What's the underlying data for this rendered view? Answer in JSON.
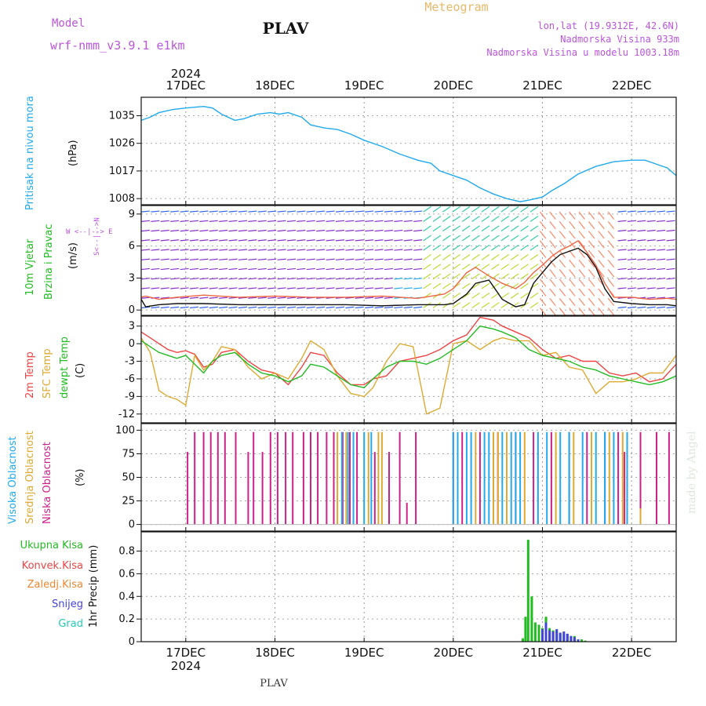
{
  "header": {
    "model_label": "Model",
    "model_name": "wrf-nmm_v3.9.1  e1km",
    "station": "PLAV",
    "product": "Meteogram",
    "coords": "lon,lat (19.9312E, 42.6N)",
    "elevation": "Nadmorska Visina 933m",
    "model_elevation": "Nadmorska Visina u modelu 1003.18m"
  },
  "footer": {
    "station": "PLAV",
    "watermark": "made by Angel"
  },
  "panels": {
    "pressure": {
      "label": "Pritisak na nivou mora",
      "label2": "",
      "unit": "(hPa)"
    },
    "wind": {
      "label1": "10m Vjetar",
      "label2": "Brzina i Pravac",
      "unit": "(m/s)",
      "compass": "S<--|-->N",
      "compass2": "W <--|--> E"
    },
    "temperature": {
      "label_2m": "2m Temp",
      "label_sfc": "SFC Temp",
      "label_dewpt": "dewpt Temp",
      "unit": "(C)"
    },
    "clouds": {
      "label_high": "Visoka Oblacnost",
      "label_mid": "Srednja Oblacnost",
      "label_low": "Niska Oblacnost",
      "unit": "(%)"
    },
    "precip": {
      "label_total": "Ukupna Kisa",
      "label_convective": "Konvek.Kisa",
      "label_freezing": "Zaledj.Kisa",
      "label_snow": "Snijeg",
      "label_hail": "Grad",
      "unit": "1hr Precip (mm)"
    }
  },
  "x_axis": {
    "year": "2024",
    "dates": [
      "17DEC",
      "18DEC",
      "19DEC",
      "20DEC",
      "21DEC",
      "22DEC"
    ]
  },
  "colors": {
    "pressure": "#22aaee",
    "temp_2m": "#ee4444",
    "temp_sfc": "#ddaa33",
    "dewpoint": "#22bb22",
    "cloud_high": "#22aaee",
    "cloud_mid": "#ddaa33",
    "cloud_low": "#cc2288",
    "precip_total": "#22bb22",
    "precip_snow": "#4444dd",
    "wind_speed": "#111111",
    "wind_gust": "#ee6644"
  },
  "chart_data": [
    {
      "type": "line",
      "panel": "pressure",
      "ylabel": "(hPa)",
      "yticks": [
        1008,
        1017,
        1026,
        1035
      ],
      "ylim": [
        1006,
        1041
      ],
      "xlim": [
        -0.5,
        5.5
      ],
      "x": [
        -0.5,
        -0.4,
        -0.3,
        -0.15,
        0,
        0.2,
        0.3,
        0.4,
        0.55,
        0.65,
        0.8,
        0.95,
        1.05,
        1.15,
        1.3,
        1.4,
        1.55,
        1.7,
        1.85,
        2.0,
        2.2,
        2.4,
        2.6,
        2.75,
        2.85,
        3.0,
        3.15,
        3.3,
        3.45,
        3.6,
        3.75,
        3.85,
        4.0,
        4.1,
        4.25,
        4.4,
        4.6,
        4.8,
        5.0,
        5.15,
        5.3,
        5.4,
        5.5
      ],
      "series": [
        {
          "values": [
            1033.5,
            1034.5,
            1036,
            1037,
            1037.5,
            1038,
            1037.5,
            1035.5,
            1033.5,
            1034,
            1035.5,
            1036,
            1035.5,
            1036,
            1034.5,
            1032,
            1031,
            1030.5,
            1029,
            1027,
            1025,
            1022.5,
            1020.5,
            1019.5,
            1017,
            1015.5,
            1014,
            1011.5,
            1009.5,
            1008,
            1007,
            1007.5,
            1008.5,
            1010.5,
            1013,
            1016,
            1018.5,
            1020,
            1020.5,
            1020.5,
            1019,
            1018,
            1015.5
          ]
        }
      ]
    },
    {
      "type": "line",
      "panel": "wind",
      "ylabel": "(m/s)",
      "yticks": [
        0,
        3,
        6,
        9
      ],
      "ylim": [
        -0.5,
        9.8
      ],
      "xlim": [
        -0.5,
        5.5
      ],
      "x": [
        -0.5,
        -0.45,
        -0.3,
        -0.1,
        0.2,
        0.6,
        1.0,
        1.4,
        1.8,
        2.2,
        2.6,
        2.9,
        3.0,
        3.15,
        3.25,
        3.4,
        3.55,
        3.7,
        3.8,
        3.9,
        4.0,
        4.1,
        4.2,
        4.3,
        4.4,
        4.5,
        4.6,
        4.7,
        4.8,
        5.0,
        5.2,
        5.4,
        5.5
      ],
      "series": [
        {
          "name": "speed",
          "values": [
            1.0,
            0.3,
            0.5,
            0.6,
            0.6,
            0.5,
            0.5,
            0.5,
            0.5,
            0.4,
            0.5,
            0.5,
            0.6,
            1.5,
            2.5,
            2.8,
            1.0,
            0.3,
            0.5,
            2.5,
            3.5,
            4.5,
            5.2,
            5.5,
            5.8,
            5.2,
            4.0,
            2.0,
            0.8,
            0.6,
            0.5,
            0.5,
            0.4
          ]
        },
        {
          "name": "gust",
          "values": [
            1.2,
            1.3,
            1.0,
            1.2,
            1.4,
            1.2,
            1.3,
            1.2,
            1.2,
            1.3,
            1.1,
            1.5,
            2.0,
            3.5,
            4.0,
            3.2,
            2.5,
            2.0,
            2.6,
            3.5,
            4.2,
            5.0,
            5.6,
            6.0,
            6.5,
            5.4,
            4.2,
            2.5,
            1.2,
            1.2,
            1.0,
            1.1,
            1.0
          ]
        }
      ]
    },
    {
      "type": "line",
      "panel": "temperature",
      "ylabel": "(C)",
      "yticks": [
        -12,
        -9,
        -6,
        -3,
        0,
        3
      ],
      "ylim": [
        -13.5,
        4.7
      ],
      "xlim": [
        -0.5,
        5.5
      ],
      "x": [
        -0.5,
        -0.4,
        -0.3,
        -0.2,
        -0.1,
        0,
        0.1,
        0.2,
        0.3,
        0.4,
        0.55,
        0.7,
        0.85,
        1.0,
        1.15,
        1.3,
        1.4,
        1.55,
        1.7,
        1.85,
        2.0,
        2.1,
        2.25,
        2.4,
        2.55,
        2.7,
        2.85,
        3.0,
        3.15,
        3.3,
        3.45,
        3.55,
        3.7,
        3.85,
        4.0,
        4.15,
        4.3,
        4.45,
        4.6,
        4.75,
        4.9,
        5.05,
        5.2,
        5.35,
        5.5
      ],
      "series": [
        {
          "name": "2m Temp",
          "values": [
            2.0,
            1.0,
            0.0,
            -1.0,
            -1.5,
            -1.2,
            -1.8,
            -4.0,
            -3.5,
            -1.5,
            -1.0,
            -3.0,
            -4.5,
            -5.0,
            -7.0,
            -4.0,
            -1.5,
            -2.0,
            -5.0,
            -7.0,
            -7.0,
            -6.0,
            -5.5,
            -3.0,
            -2.5,
            -2.0,
            -1.0,
            0.5,
            1.5,
            4.5,
            4.0,
            3.0,
            2.0,
            1.0,
            -1.0,
            -2.5,
            -2.0,
            -3.0,
            -3.0,
            -5.0,
            -5.5,
            -5.0,
            -6.5,
            -6.0,
            -3.5
          ]
        },
        {
          "name": "SFC Temp",
          "values": [
            1.0,
            -1.5,
            -8.0,
            -9.0,
            -9.5,
            -10.5,
            -2.0,
            -4.5,
            -3.0,
            -0.5,
            -1.0,
            -4.0,
            -6.0,
            -5.0,
            -6.0,
            -2.5,
            0.5,
            -1.0,
            -5.5,
            -8.5,
            -9.0,
            -7.5,
            -3.0,
            0.0,
            -0.5,
            -12.0,
            -11.0,
            0.0,
            0.5,
            -1.0,
            0.5,
            1.0,
            0.5,
            0.5,
            -2.0,
            -1.5,
            -4.0,
            -4.5,
            -8.5,
            -6.5,
            -6.5,
            -6.0,
            -5.0,
            -5.0,
            -2.0
          ]
        },
        {
          "name": "dewpt Temp",
          "values": [
            0.5,
            -0.5,
            -1.5,
            -2.0,
            -2.5,
            -2.0,
            -3.5,
            -5.0,
            -3.0,
            -2.0,
            -1.5,
            -3.5,
            -5.0,
            -5.5,
            -6.5,
            -5.5,
            -3.5,
            -4.0,
            -5.5,
            -7.0,
            -7.5,
            -6.0,
            -4.0,
            -3.0,
            -3.0,
            -3.5,
            -2.5,
            -1.0,
            0.5,
            3.0,
            2.5,
            2.0,
            1.0,
            -1.0,
            -2.0,
            -2.5,
            -3.0,
            -4.0,
            -4.5,
            -5.5,
            -6.0,
            -6.5,
            -7.0,
            -6.5,
            -5.5
          ]
        }
      ]
    },
    {
      "type": "bar",
      "panel": "clouds",
      "ylabel": "(%)",
      "yticks": [
        0,
        25,
        50,
        75,
        100
      ],
      "ylim": [
        -7,
        107
      ],
      "xlim": [
        -0.5,
        5.5
      ],
      "series": [
        {
          "name": "Niska Oblacnost",
          "x": [
            0.02,
            0.1,
            0.2,
            0.28,
            0.36,
            0.44,
            0.56,
            0.7,
            0.76,
            0.86,
            0.95,
            1.03,
            1.12,
            1.2,
            1.32,
            1.4,
            1.48,
            1.58,
            1.66,
            1.76,
            1.84,
            1.92,
            2.12,
            2.28,
            2.4,
            2.48,
            2.58,
            3.0,
            3.1,
            3.3,
            3.5,
            3.7,
            3.9,
            4.1,
            4.3,
            4.5,
            4.7,
            4.85,
            4.92,
            5.1,
            5.28,
            5.42
          ],
          "values": [
            77,
            98,
            98,
            98,
            98,
            98,
            98,
            77,
            98,
            77,
            98,
            98,
            98,
            98,
            98,
            98,
            98,
            98,
            98,
            98,
            98,
            98,
            77,
            77,
            98,
            23,
            98,
            98,
            98,
            98,
            98,
            98,
            98,
            98,
            98,
            98,
            98,
            98,
            77,
            98,
            98,
            98
          ]
        },
        {
          "name": "Srednja Oblacnost",
          "x": [
            1.7,
            1.8,
            2.05,
            2.16,
            2.2,
            3.05,
            3.25,
            3.45,
            3.5,
            3.6,
            3.8,
            3.95,
            4.15,
            4.35,
            4.55,
            4.75,
            4.9,
            5.1
          ],
          "values": [
            98,
            98,
            98,
            98,
            98,
            98,
            98,
            98,
            98,
            98,
            98,
            98,
            98,
            98,
            98,
            98,
            98,
            17
          ]
        },
        {
          "name": "Visoka Oblacnost",
          "x": [
            1.75,
            1.82,
            1.88,
            2.0,
            2.08,
            3.0,
            3.05,
            3.15,
            3.2,
            3.35,
            3.4,
            3.55,
            3.65,
            3.7,
            3.75,
            3.95,
            4.05,
            4.2,
            4.3,
            4.45,
            4.6,
            4.7,
            4.8,
            4.95
          ],
          "values": [
            98,
            98,
            98,
            98,
            98,
            98,
            98,
            98,
            98,
            98,
            98,
            98,
            98,
            98,
            98,
            98,
            98,
            98,
            98,
            98,
            98,
            98,
            98,
            98
          ]
        }
      ]
    },
    {
      "type": "bar",
      "panel": "precip",
      "ylabel": "1hr Precip (mm)",
      "yticks": [
        0,
        0.2,
        0.4,
        0.6,
        0.8
      ],
      "ylim": [
        0,
        0.97
      ],
      "xlim": [
        -0.5,
        5.5
      ],
      "series": [
        {
          "name": "Ukupna Kisa",
          "x": [
            3.78,
            3.81,
            3.84,
            3.88,
            3.92,
            3.96,
            4.0,
            4.04,
            4.08,
            4.12,
            4.16,
            4.2,
            4.24,
            4.28,
            4.32,
            4.36,
            4.4,
            4.44,
            4.48
          ],
          "values": [
            0.03,
            0.22,
            0.9,
            0.4,
            0.17,
            0.15,
            0.12,
            0.22,
            0.12,
            0.1,
            0.1,
            0.07,
            0.07,
            0.07,
            0.05,
            0.05,
            0.02,
            0.02,
            0.01
          ]
        },
        {
          "name": "Snijeg",
          "x": [
            4.0,
            4.04,
            4.08,
            4.12,
            4.16,
            4.2,
            4.24,
            4.28,
            4.32,
            4.36,
            4.4
          ],
          "values": [
            0.11,
            0.17,
            0.1,
            0.09,
            0.11,
            0.08,
            0.09,
            0.07,
            0.05,
            0.04,
            0.02
          ]
        }
      ]
    }
  ]
}
